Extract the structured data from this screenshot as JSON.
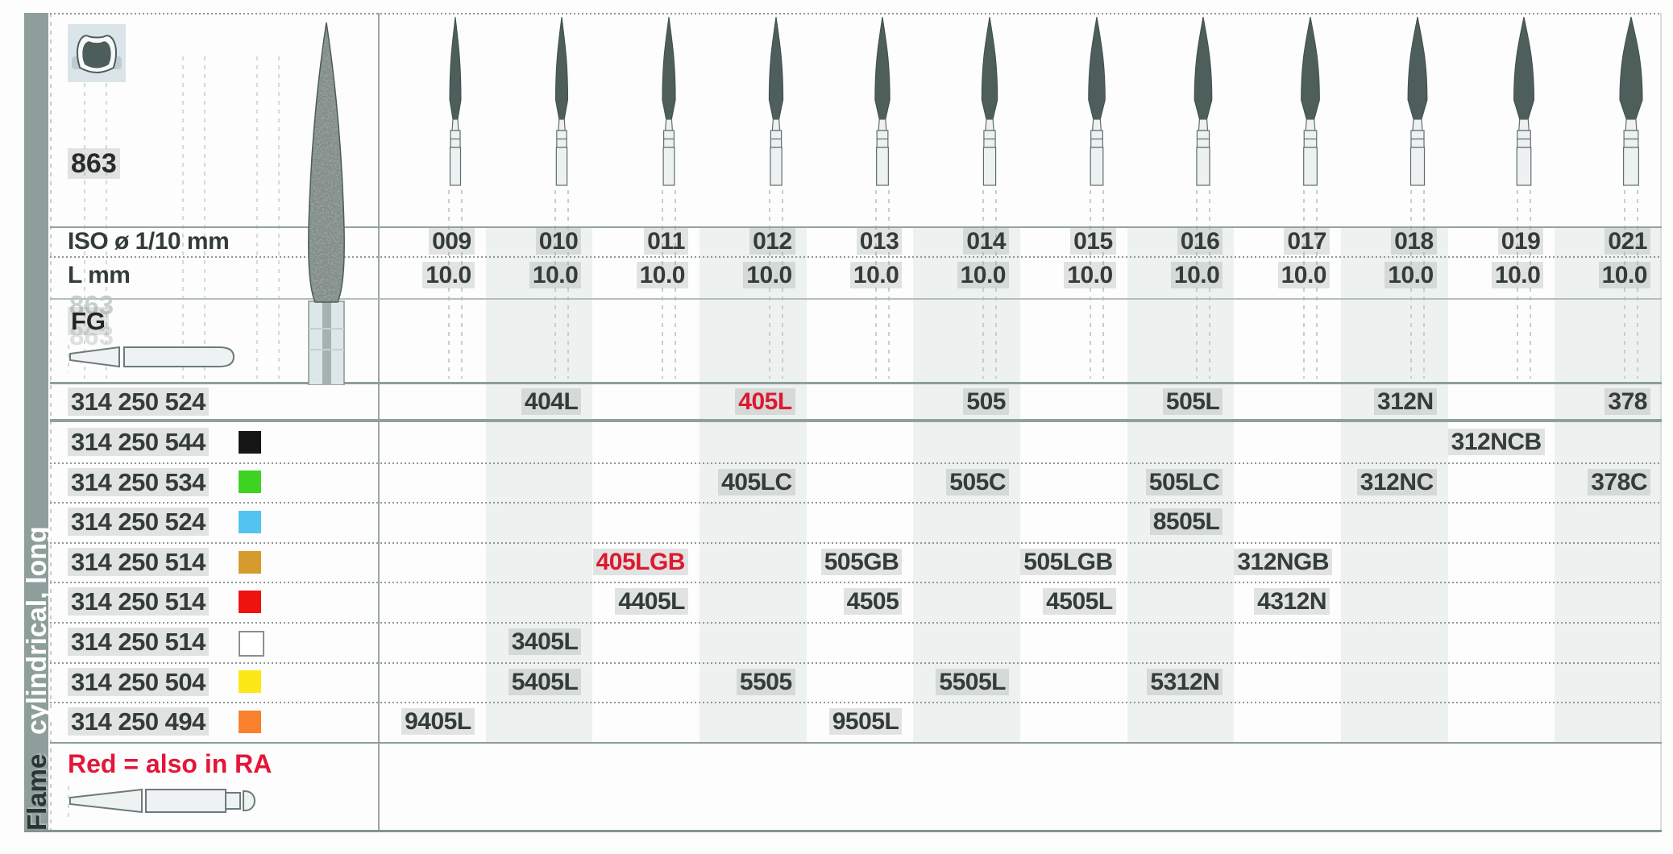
{
  "sidebar": {
    "section_label": "cylindrical, long",
    "next_section_label": "Flame"
  },
  "header": {
    "product_number": "863",
    "ghost_watermark": "863"
  },
  "labels": {
    "iso": "ISO ø 1/10 mm",
    "length": "L mm",
    "shank": "FG"
  },
  "columns": {
    "iso_values": [
      "009",
      "010",
      "011",
      "012",
      "013",
      "014",
      "015",
      "016",
      "017",
      "018",
      "019",
      "021"
    ],
    "length_values": [
      "10.0",
      "10.0",
      "10.0",
      "10.0",
      "10.0",
      "10.0",
      "10.0",
      "10.0",
      "10.0",
      "10.0",
      "10.0",
      "10.0"
    ]
  },
  "order_rows": [
    {
      "code": "314 250 524",
      "swatch": null,
      "cells": [
        {
          "col": 1,
          "text": "404L"
        },
        {
          "col": 3,
          "text": "405L",
          "red": true
        },
        {
          "col": 5,
          "text": "505"
        },
        {
          "col": 7,
          "text": "505L"
        },
        {
          "col": 9,
          "text": "312N"
        },
        {
          "col": 11,
          "text": "378"
        }
      ]
    },
    {
      "code": "314 250 544",
      "swatch": "#161616",
      "cells": [
        {
          "col": 10,
          "text": "312NCB"
        }
      ]
    },
    {
      "code": "314 250 534",
      "swatch": "#3ed321",
      "cells": [
        {
          "col": 3,
          "text": "405LC"
        },
        {
          "col": 5,
          "text": "505C"
        },
        {
          "col": 7,
          "text": "505LC"
        },
        {
          "col": 9,
          "text": "312NC"
        },
        {
          "col": 11,
          "text": "378C"
        }
      ]
    },
    {
      "code": "314 250 524",
      "swatch": "#53c4f1",
      "cells": [
        {
          "col": 7,
          "text": "8505L"
        }
      ]
    },
    {
      "code": "314 250 514",
      "swatch": "#d59b2d",
      "cells": [
        {
          "col": 2,
          "text": "405LGB",
          "red": true
        },
        {
          "col": 4,
          "text": "505GB"
        },
        {
          "col": 6,
          "text": "505LGB"
        },
        {
          "col": 8,
          "text": "312NGB"
        }
      ]
    },
    {
      "code": "314 250 514",
      "swatch": "#ef1310",
      "cells": [
        {
          "col": 2,
          "text": "4405L"
        },
        {
          "col": 4,
          "text": "4505"
        },
        {
          "col": 6,
          "text": "4505L"
        },
        {
          "col": 8,
          "text": "4312N"
        }
      ]
    },
    {
      "code": "314 250 514",
      "swatch": "#ffffff",
      "cells": [
        {
          "col": 1,
          "text": "3405L"
        }
      ]
    },
    {
      "code": "314 250 504",
      "swatch": "#fce816",
      "cells": [
        {
          "col": 1,
          "text": "5405L"
        },
        {
          "col": 3,
          "text": "5505"
        },
        {
          "col": 5,
          "text": "5505L"
        },
        {
          "col": 7,
          "text": "5312N"
        }
      ]
    },
    {
      "code": "314 250 494",
      "swatch": "#f9802c",
      "cells": [
        {
          "col": 0,
          "text": "9405L"
        },
        {
          "col": 4,
          "text": "9505L"
        }
      ]
    }
  ],
  "footer": {
    "note": "Red = also in RA"
  },
  "colors": {
    "accent_red": "#e21739",
    "table_line": "#8e9e9b",
    "stripe": "#edf1ef",
    "sidebar": "#8e9e9a"
  }
}
